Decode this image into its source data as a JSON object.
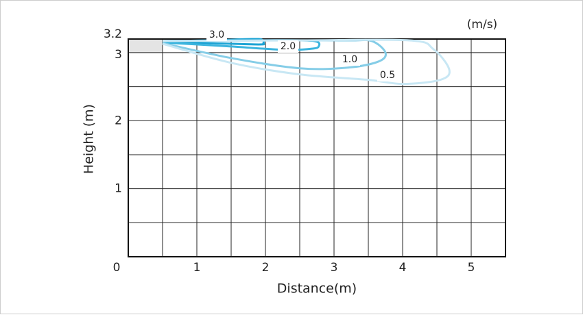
{
  "chart_data": {
    "type": "contour",
    "unit": "(m/s)",
    "x_label": "Distance(m)",
    "y_label": "Height (m)",
    "xlim": [
      0,
      5.5
    ],
    "ylim": [
      0,
      3.2
    ],
    "xticks": [
      0,
      1,
      2,
      3,
      4,
      5
    ],
    "yticks": [
      1,
      2,
      3,
      3.2
    ],
    "xgrid": [
      0.5,
      1,
      1.5,
      2,
      2.5,
      3,
      3.5,
      4,
      4.5,
      5
    ],
    "ygrid": [
      0.5,
      1,
      1.5,
      2,
      2.5,
      3
    ],
    "series": [
      {
        "name": "3.0",
        "color": "#1ba3d4",
        "x": [
          0.5,
          1.2,
          1.8,
          1.95,
          1.97,
          1.9,
          1.2,
          0.5
        ],
        "y": [
          3.17,
          3.18,
          3.2,
          3.19,
          3.14,
          3.12,
          3.14,
          3.16
        ]
      },
      {
        "name": "2.0",
        "color": "#3ab4de",
        "x": [
          0.5,
          1.5,
          2.5,
          2.75,
          2.78,
          2.7,
          2.3,
          1.5,
          0.5
        ],
        "y": [
          3.17,
          3.18,
          3.18,
          3.16,
          3.1,
          3.06,
          3.04,
          3.09,
          3.15
        ]
      },
      {
        "name": "1.0",
        "color": "#85cde7",
        "x": [
          0.5,
          2,
          3.2,
          3.55,
          3.75,
          3.65,
          3.2,
          2.5,
          1.5,
          0.5
        ],
        "y": [
          3.17,
          3.18,
          3.18,
          3.17,
          3.0,
          2.87,
          2.78,
          2.77,
          2.92,
          3.14
        ]
      },
      {
        "name": "0.5",
        "color": "#c8e7f4",
        "x": [
          0.5,
          2.5,
          4.1,
          4.45,
          4.68,
          4.55,
          4.0,
          3.5,
          2.5,
          1.5,
          0.5
        ],
        "y": [
          3.17,
          3.18,
          3.18,
          3.05,
          2.75,
          2.6,
          2.54,
          2.6,
          2.68,
          2.85,
          3.13
        ]
      }
    ]
  }
}
